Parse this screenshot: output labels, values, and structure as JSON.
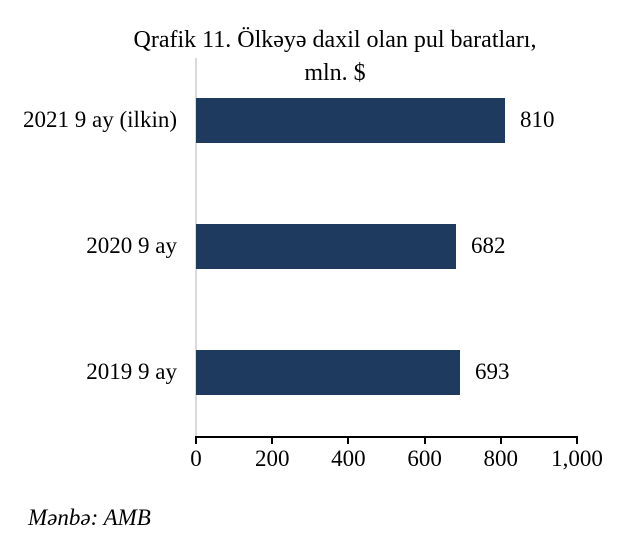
{
  "chart_data": {
    "type": "bar",
    "orientation": "horizontal",
    "title": "Qrafik 11. Ölkəyə daxil olan pul baratları,",
    "subtitle": "mln. $",
    "categories": [
      "2021 9 ay (ilkin)",
      "2020 9 ay",
      "2019 9 ay"
    ],
    "values": [
      810,
      682,
      693
    ],
    "data_labels": [
      "810",
      "682",
      "693"
    ],
    "xlim": [
      0,
      1000
    ],
    "x_tick_values": [
      0,
      200,
      400,
      600,
      800,
      1000
    ],
    "x_tick_labels": [
      "0",
      "200",
      "400",
      "600",
      "800",
      "1,000"
    ],
    "grid": "off",
    "legend": "none",
    "colors": {
      "bar": "#1e3a5f",
      "axis": "#000000",
      "category_axis_line": "#d9d9d9",
      "text": "#000000"
    },
    "source": "Mənbə: AMB"
  }
}
